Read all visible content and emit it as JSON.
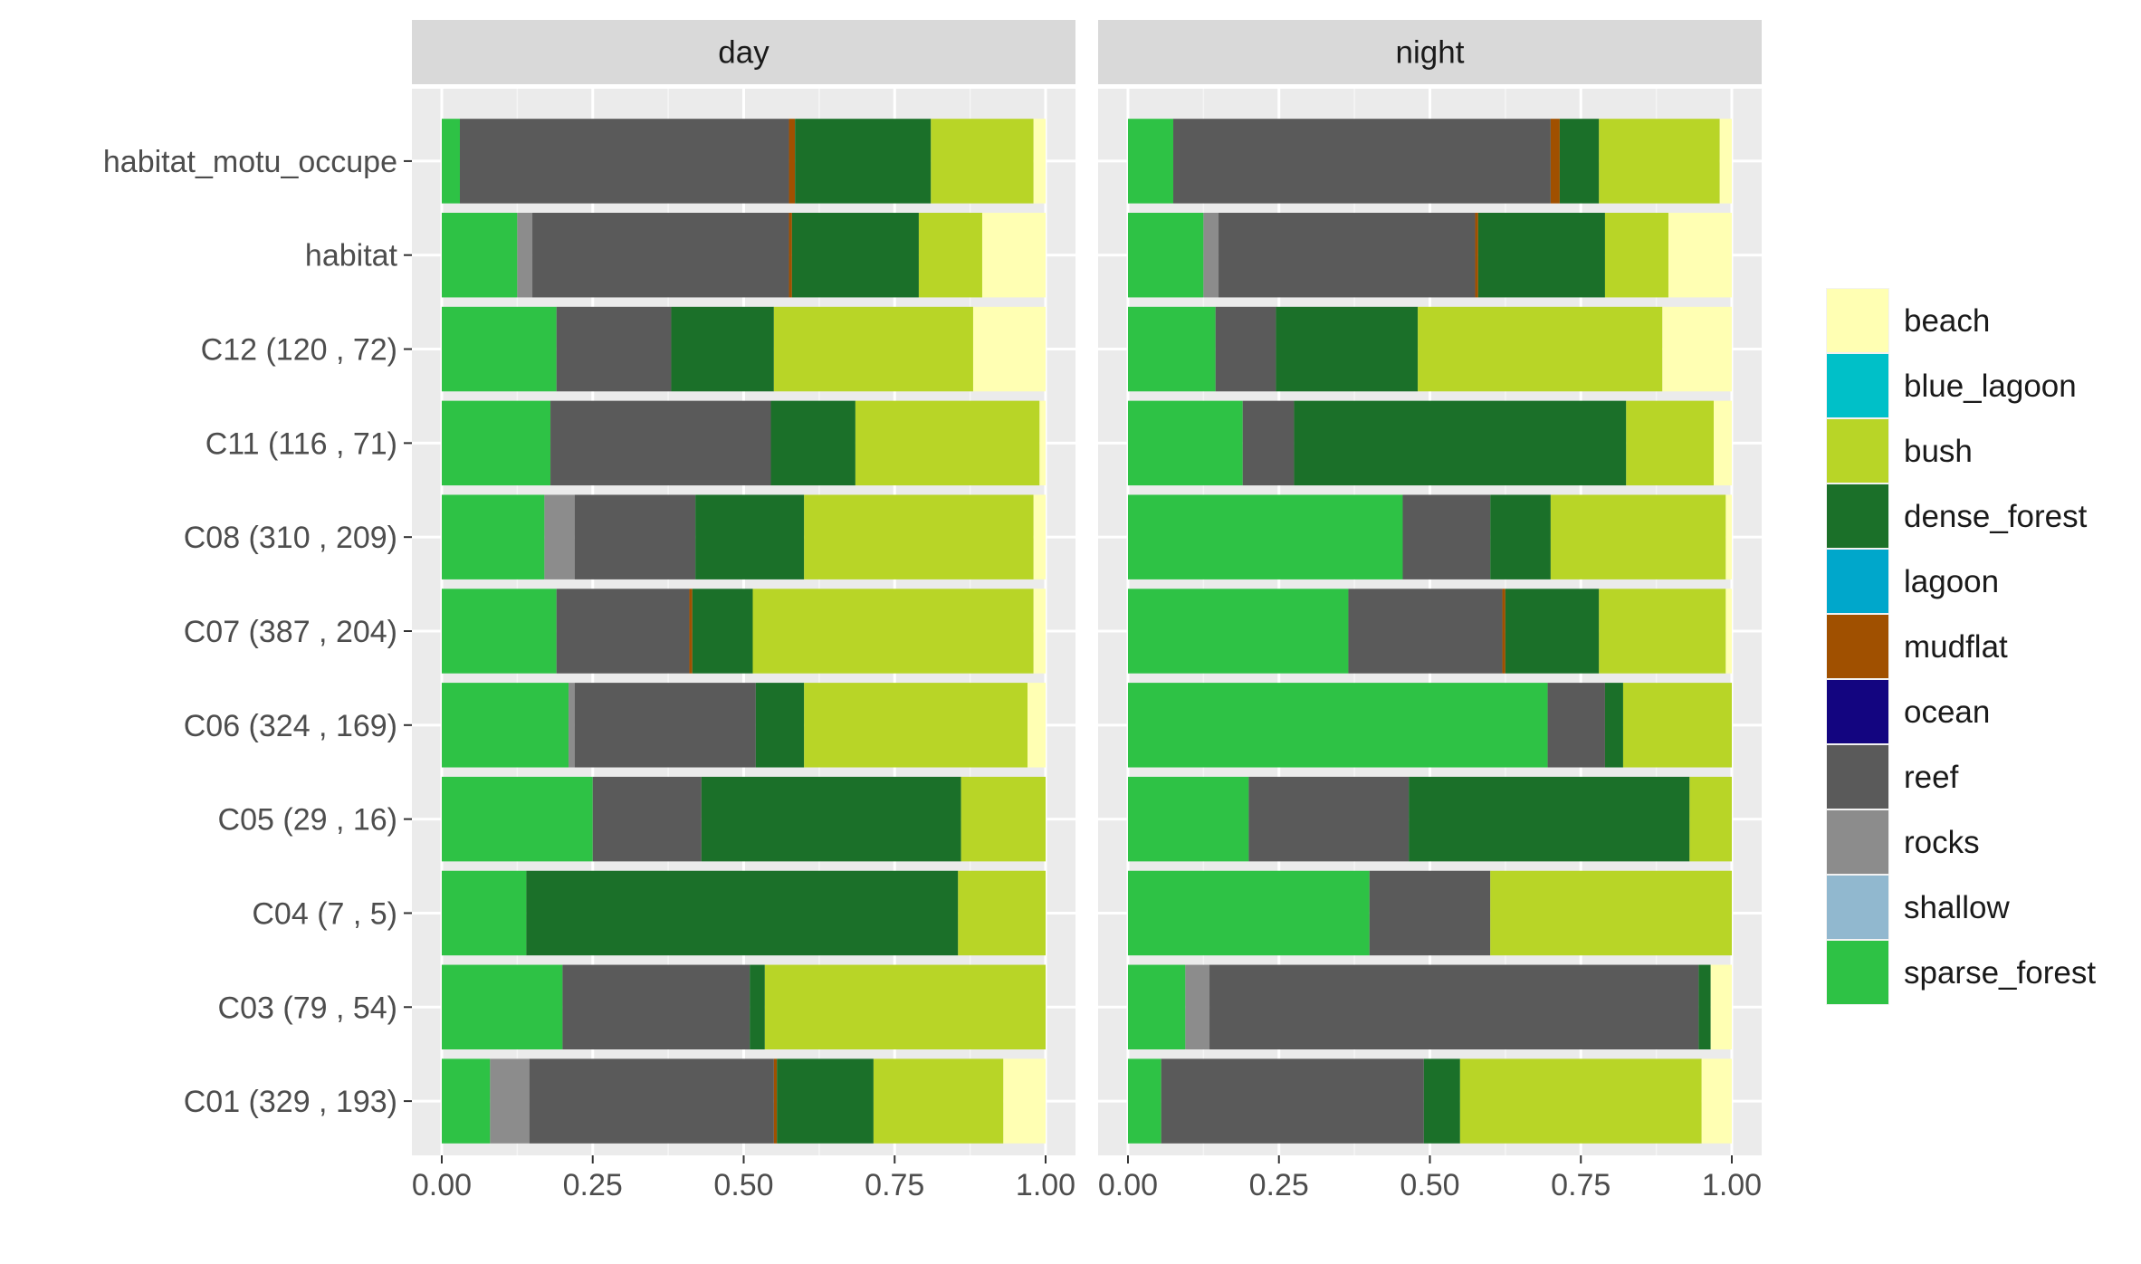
{
  "chart_data": {
    "type": "bar",
    "orientation": "horizontal",
    "stacked": true,
    "facets": [
      "day",
      "night"
    ],
    "categories": [
      "habitat_motu_occupe",
      "habitat",
      "C12 (120 , 72)",
      "C11 (116 , 71)",
      "C08 (310 , 209)",
      "C07 (387 , 204)",
      "C06 (324 , 169)",
      "C05 (29 , 16)",
      "C04 (7 , 5)",
      "C03 (79 , 54)",
      "C01 (329 , 193)"
    ],
    "x_ticks": [
      "0.00",
      "0.25",
      "0.50",
      "0.75",
      "1.00"
    ],
    "xlim": [
      0,
      1
    ],
    "xlabel": "",
    "ylabel": "",
    "grid": true,
    "legend_position": "right",
    "legend": [
      {
        "name": "beach",
        "color": "#FFFFB3"
      },
      {
        "name": "blue_lagoon",
        "color": "#00C0C8"
      },
      {
        "name": "bush",
        "color": "#B8D527"
      },
      {
        "name": "dense_forest",
        "color": "#1B7029"
      },
      {
        "name": "lagoon",
        "color": "#00A7CB"
      },
      {
        "name": "mudflat",
        "color": "#A05000"
      },
      {
        "name": "ocean",
        "color": "#130580"
      },
      {
        "name": "reef",
        "color": "#5A5A5A"
      },
      {
        "name": "rocks",
        "color": "#8C8C8C"
      },
      {
        "name": "shallow",
        "color": "#91B8CF"
      },
      {
        "name": "sparse_forest",
        "color": "#2EC245"
      }
    ],
    "data": {
      "day": [
        {
          "sparse_forest": 0.03,
          "reef": 0.545,
          "mudflat": 0.01,
          "dense_forest": 0.225,
          "bush": 0.17,
          "beach": 0.02
        },
        {
          "sparse_forest": 0.125,
          "rocks": 0.025,
          "reef": 0.425,
          "mudflat": 0.005,
          "dense_forest": 0.21,
          "bush": 0.105,
          "beach": 0.105
        },
        {
          "sparse_forest": 0.19,
          "reef": 0.19,
          "dense_forest": 0.17,
          "bush": 0.33,
          "beach": 0.12
        },
        {
          "sparse_forest": 0.18,
          "reef": 0.365,
          "dense_forest": 0.14,
          "bush": 0.305,
          "beach": 0.01
        },
        {
          "sparse_forest": 0.17,
          "rocks": 0.05,
          "reef": 0.2,
          "dense_forest": 0.18,
          "bush": 0.38,
          "beach": 0.02
        },
        {
          "sparse_forest": 0.19,
          "reef": 0.22,
          "mudflat": 0.005,
          "dense_forest": 0.1,
          "bush": 0.465,
          "beach": 0.02
        },
        {
          "sparse_forest": 0.21,
          "rocks": 0.01,
          "reef": 0.3,
          "dense_forest": 0.08,
          "bush": 0.37,
          "beach": 0.03
        },
        {
          "sparse_forest": 0.25,
          "reef": 0.18,
          "dense_forest": 0.43,
          "bush": 0.14
        },
        {
          "sparse_forest": 0.14,
          "dense_forest": 0.715,
          "bush": 0.145
        },
        {
          "sparse_forest": 0.2,
          "reef": 0.31,
          "dense_forest": 0.025,
          "bush": 0.465
        },
        {
          "sparse_forest": 0.08,
          "rocks": 0.065,
          "reef": 0.405,
          "mudflat": 0.005,
          "dense_forest": 0.16,
          "bush": 0.215,
          "beach": 0.07
        }
      ],
      "night": [
        {
          "sparse_forest": 0.075,
          "reef": 0.625,
          "mudflat": 0.015,
          "dense_forest": 0.065,
          "bush": 0.2,
          "beach": 0.02
        },
        {
          "sparse_forest": 0.125,
          "rocks": 0.025,
          "reef": 0.425,
          "mudflat": 0.005,
          "dense_forest": 0.21,
          "bush": 0.105,
          "beach": 0.105
        },
        {
          "sparse_forest": 0.145,
          "reef": 0.1,
          "dense_forest": 0.235,
          "bush": 0.405,
          "beach": 0.115
        },
        {
          "sparse_forest": 0.19,
          "reef": 0.085,
          "dense_forest": 0.55,
          "bush": 0.145,
          "beach": 0.03
        },
        {
          "sparse_forest": 0.455,
          "reef": 0.145,
          "dense_forest": 0.1,
          "bush": 0.29,
          "beach": 0.01
        },
        {
          "sparse_forest": 0.365,
          "reef": 0.255,
          "mudflat": 0.005,
          "dense_forest": 0.155,
          "bush": 0.21,
          "beach": 0.01
        },
        {
          "sparse_forest": 0.695,
          "reef": 0.095,
          "dense_forest": 0.03,
          "bush": 0.18
        },
        {
          "sparse_forest": 0.2,
          "reef": 0.265,
          "dense_forest": 0.465,
          "bush": 0.07
        },
        {
          "sparse_forest": 0.4,
          "reef": 0.2,
          "bush": 0.4
        },
        {
          "sparse_forest": 0.095,
          "rocks": 0.04,
          "reef": 0.81,
          "dense_forest": 0.02,
          "beach": 0.035
        },
        {
          "sparse_forest": 0.055,
          "reef": 0.435,
          "dense_forest": 0.06,
          "bush": 0.4,
          "beach": 0.05
        }
      ]
    },
    "stack_order": [
      "sparse_forest",
      "shallow",
      "rocks",
      "reef",
      "ocean",
      "mudflat",
      "lagoon",
      "dense_forest",
      "bush",
      "blue_lagoon",
      "beach"
    ]
  }
}
